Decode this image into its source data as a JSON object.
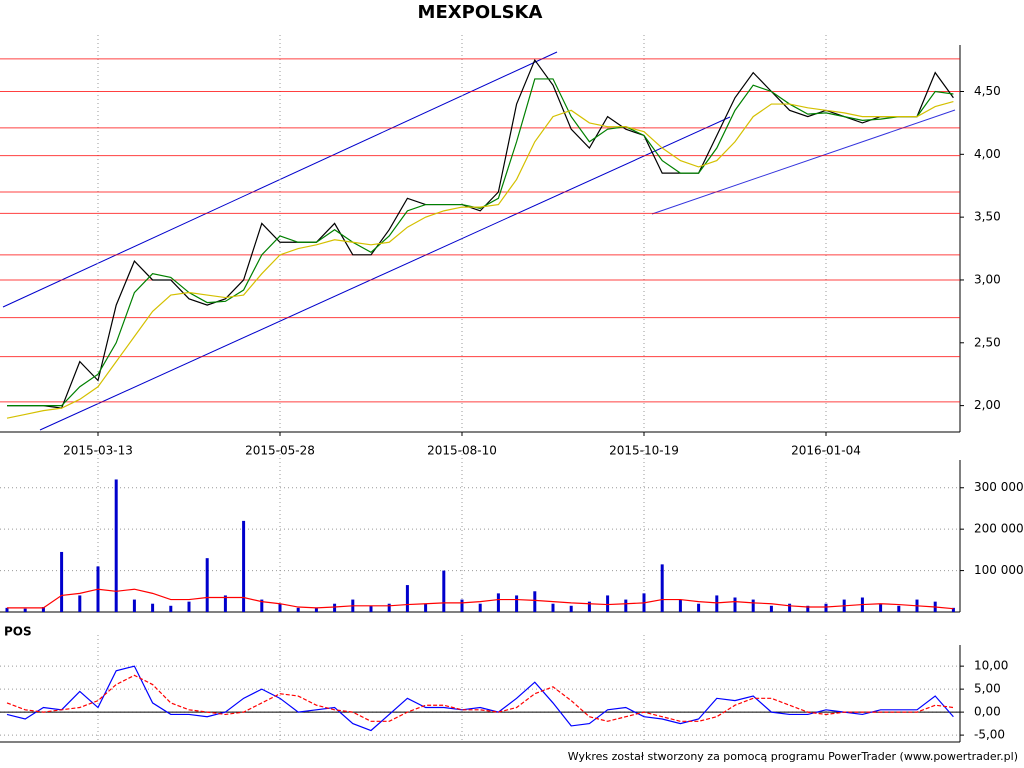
{
  "chart_data": [
    {
      "type": "line",
      "title": "MEXPOLSKA",
      "categories": [
        null,
        null,
        null,
        null,
        null,
        "2015-03-13",
        null,
        null,
        null,
        null,
        null,
        null,
        null,
        null,
        null,
        "2015-05-28",
        null,
        null,
        null,
        null,
        null,
        null,
        null,
        null,
        null,
        "2015-08-10",
        null,
        null,
        null,
        null,
        null,
        null,
        null,
        null,
        null,
        "2015-10-19",
        null,
        null,
        null,
        null,
        null,
        null,
        null,
        null,
        null,
        "2016-01-04",
        null,
        null,
        null,
        null,
        null,
        null,
        null
      ],
      "series": [
        {
          "color": "#000000",
          "values": [
            2.0,
            2.0,
            2.0,
            1.98,
            2.35,
            2.2,
            2.8,
            3.15,
            3.0,
            3.0,
            2.85,
            2.8,
            2.85,
            3.0,
            3.45,
            3.3,
            3.3,
            3.3,
            3.45,
            3.2,
            3.2,
            3.4,
            3.65,
            3.6,
            3.6,
            3.6,
            3.55,
            3.7,
            4.4,
            4.75,
            4.55,
            4.2,
            4.05,
            4.3,
            4.2,
            4.15,
            3.85,
            3.85,
            3.85,
            4.15,
            4.45,
            4.65,
            4.5,
            4.35,
            4.3,
            4.35,
            4.3,
            4.25,
            4.3,
            4.3,
            4.3,
            4.65,
            4.45
          ]
        },
        {
          "color": "#008000",
          "values": [
            2.0,
            2.0,
            2.0,
            2.0,
            2.15,
            2.25,
            2.5,
            2.9,
            3.05,
            3.02,
            2.9,
            2.82,
            2.83,
            2.92,
            3.2,
            3.35,
            3.3,
            3.3,
            3.4,
            3.3,
            3.22,
            3.35,
            3.55,
            3.6,
            3.6,
            3.6,
            3.57,
            3.65,
            4.1,
            4.6,
            4.6,
            4.3,
            4.1,
            4.2,
            4.22,
            4.15,
            3.95,
            3.85,
            3.85,
            4.05,
            4.35,
            4.55,
            4.5,
            4.4,
            4.32,
            4.33,
            4.3,
            4.27,
            4.28,
            4.3,
            4.3,
            4.5,
            4.48
          ]
        },
        {
          "color": "#d4c000",
          "values": [
            1.9,
            1.93,
            1.96,
            1.98,
            2.05,
            2.15,
            2.35,
            2.55,
            2.75,
            2.88,
            2.9,
            2.88,
            2.86,
            2.88,
            3.05,
            3.2,
            3.25,
            3.28,
            3.32,
            3.3,
            3.28,
            3.3,
            3.42,
            3.5,
            3.55,
            3.58,
            3.58,
            3.6,
            3.8,
            4.1,
            4.3,
            4.35,
            4.25,
            4.22,
            4.22,
            4.18,
            4.05,
            3.95,
            3.9,
            3.95,
            4.1,
            4.3,
            4.4,
            4.4,
            4.37,
            4.35,
            4.33,
            4.3,
            4.3,
            4.3,
            4.3,
            4.38,
            4.42
          ]
        }
      ],
      "hlines": [
        2.03,
        2.39,
        2.7,
        3.0,
        3.2,
        3.53,
        3.7,
        3.99,
        4.21,
        4.5,
        4.76
      ],
      "hline_color": "#ff0000",
      "ylim": [
        1.79,
        4.87
      ],
      "yticks": [
        {
          "value": 2.0,
          "label": "2,00"
        },
        {
          "value": 2.5,
          "label": "2,50"
        },
        {
          "value": 3.0,
          "label": "3,00"
        },
        {
          "value": 3.5,
          "label": "3,50"
        },
        {
          "value": 4.0,
          "label": "4,00"
        },
        {
          "value": 4.5,
          "label": "4,50"
        }
      ],
      "grid": false
    },
    {
      "type": "bar",
      "series": [
        {
          "color": "#0000cc",
          "type": "bar",
          "values": [
            10000,
            8000,
            12000,
            145000,
            40000,
            110000,
            320000,
            30000,
            20000,
            15000,
            25000,
            130000,
            40000,
            220000,
            30000,
            20000,
            10000,
            10000,
            20000,
            30000,
            15000,
            20000,
            65000,
            20000,
            100000,
            30000,
            20000,
            45000,
            40000,
            50000,
            20000,
            15000,
            25000,
            40000,
            30000,
            45000,
            115000,
            30000,
            20000,
            40000,
            35000,
            30000,
            15000,
            20000,
            15000,
            20000,
            30000,
            35000,
            20000,
            15000,
            30000,
            25000,
            10000
          ]
        },
        {
          "color": "#ff0000",
          "type": "line",
          "values": [
            10000,
            10000,
            10000,
            40000,
            45000,
            55000,
            50000,
            55000,
            45000,
            30000,
            30000,
            35000,
            35000,
            35000,
            25000,
            20000,
            12000,
            10000,
            12000,
            15000,
            15000,
            15000,
            18000,
            20000,
            22000,
            22000,
            25000,
            30000,
            30000,
            28000,
            25000,
            22000,
            20000,
            18000,
            20000,
            22000,
            30000,
            30000,
            25000,
            22000,
            25000,
            22000,
            20000,
            15000,
            12000,
            12000,
            15000,
            18000,
            20000,
            18000,
            15000,
            12000,
            8000
          ]
        }
      ],
      "ylim": [
        0,
        367000
      ],
      "yticks": [
        {
          "value": 100000,
          "label": "100 000"
        },
        {
          "value": 200000,
          "label": "200 000"
        },
        {
          "value": 300000,
          "label": "300 000"
        }
      ],
      "grid": true
    },
    {
      "type": "line",
      "title": "POS",
      "series": [
        {
          "color": "#0000ff",
          "values": [
            -0.5,
            -1.5,
            1,
            0.5,
            4.5,
            1,
            9,
            10,
            2,
            -0.5,
            -0.5,
            -1,
            0,
            3,
            5,
            3,
            0,
            0.5,
            1,
            -2.5,
            -4,
            -0.5,
            3,
            1,
            1,
            0.5,
            1,
            0,
            3,
            6.5,
            2,
            -3,
            -2.5,
            0.5,
            1,
            -1,
            -1.5,
            -2.5,
            -1.5,
            3,
            2.5,
            3.5,
            0,
            -0.5,
            -0.5,
            0.5,
            0,
            -0.5,
            0.5,
            0.5,
            0.5,
            3.5,
            -1
          ]
        },
        {
          "color": "#ff0000",
          "dash": true,
          "values": [
            2,
            0.5,
            0,
            0.5,
            1,
            2.5,
            6,
            8,
            6,
            2,
            0.5,
            0,
            -0.5,
            0,
            2,
            4,
            3.5,
            1.5,
            0.5,
            0,
            -2,
            -2,
            0,
            1.5,
            1.5,
            0.5,
            0.5,
            0,
            1,
            4,
            5.5,
            2.5,
            -1,
            -2,
            -1,
            0,
            -1,
            -2,
            -2,
            -1,
            1.5,
            3,
            3,
            1.5,
            0,
            -0.5,
            0,
            0,
            0,
            0,
            0,
            1.5,
            1
          ]
        }
      ],
      "ylim": [
        -6.5,
        14.6
      ],
      "yticks": [
        {
          "value": -5,
          "label": "-5,00"
        },
        {
          "value": 0,
          "label": "0,00"
        },
        {
          "value": 5,
          "label": "5,00"
        },
        {
          "value": 10,
          "label": "10,00"
        }
      ],
      "grid": true
    }
  ],
  "footer": "Wykres został stworzony za pomocą programu PowerTrader (www.powertrader.pl)"
}
